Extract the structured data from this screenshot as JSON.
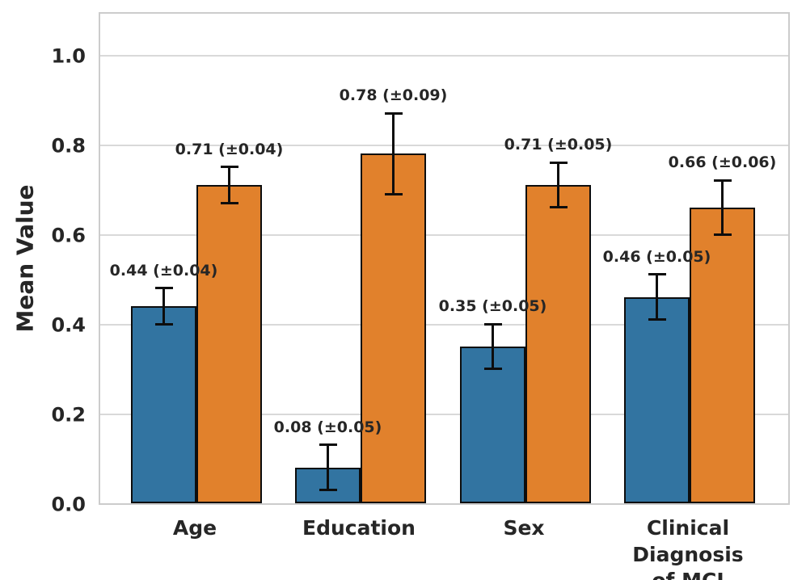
{
  "chart_data": {
    "type": "bar",
    "title": "",
    "ylabel": "Mean Value",
    "xlabel": "",
    "categories": [
      "Age",
      "Education",
      "Sex",
      "Clinical\nDiagnosis of MCI"
    ],
    "series": [
      {
        "name": "blue",
        "color": "#3274a1",
        "values": [
          0.44,
          0.08,
          0.35,
          0.46
        ],
        "errors": [
          0.04,
          0.05,
          0.05,
          0.05
        ],
        "labels": [
          "0.44 (±0.04)",
          "0.08 (±0.05)",
          "0.35 (±0.05)",
          "0.46 (±0.05)"
        ]
      },
      {
        "name": "orange",
        "color": "#e1812c",
        "values": [
          0.71,
          0.78,
          0.71,
          0.66
        ],
        "errors": [
          0.04,
          0.09,
          0.05,
          0.06
        ],
        "labels": [
          "0.71 (±0.04)",
          "0.78 (±0.09)",
          "0.71 (±0.05)",
          "0.66 (±0.06)"
        ]
      }
    ],
    "yticks": [
      0.0,
      0.2,
      0.4,
      0.6,
      0.8,
      1.0
    ],
    "ytick_labels": [
      "0.0",
      "0.2",
      "0.4",
      "0.6",
      "0.8",
      "1.0"
    ],
    "ylim": [
      0,
      1.1
    ],
    "grid": true,
    "legend": "none",
    "colors": {
      "text": "#262626",
      "grid": "#d9d9d9",
      "axes_border": "#cccccc",
      "bar_edge": "#0d0d0d",
      "error_bar": "#0d0d0d",
      "background": "#ffffff"
    }
  }
}
